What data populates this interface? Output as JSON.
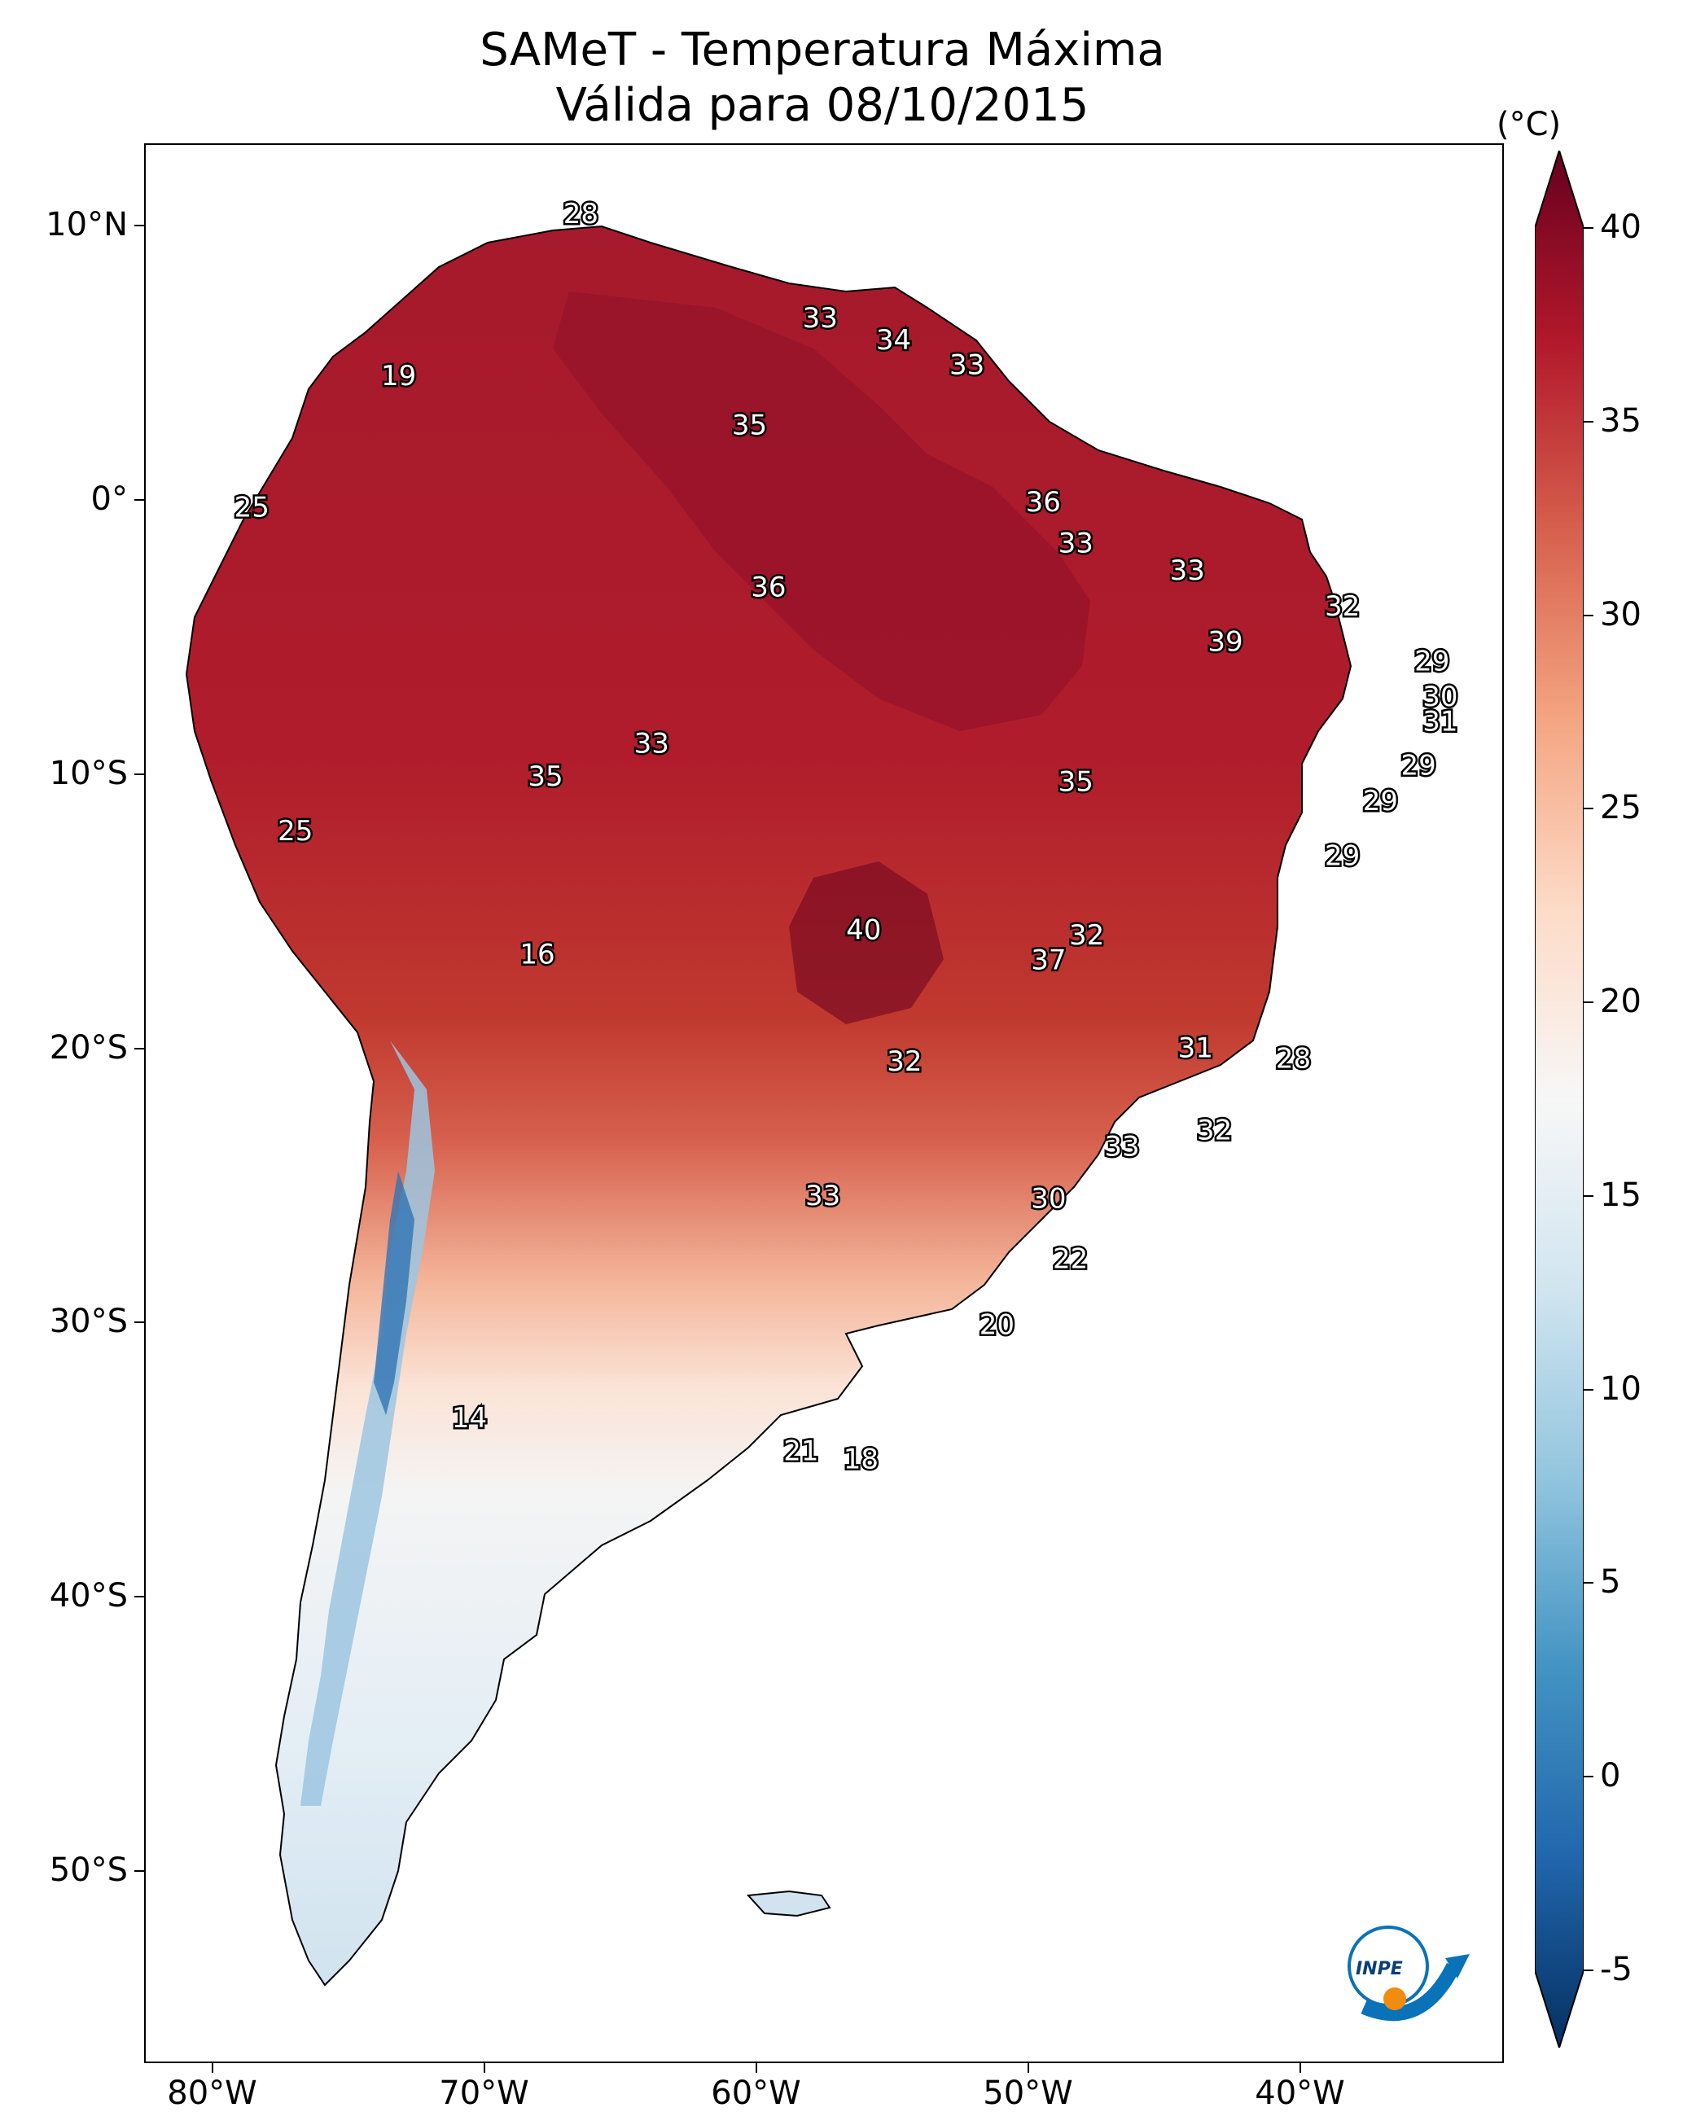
{
  "title": {
    "line1": "SAMeT - Temperatura Máxima",
    "line2": "Válida para 08/10/2015"
  },
  "map": {
    "lon_range": [
      -82.5,
      -32.5
    ],
    "lat_range": [
      -57,
      13
    ],
    "lat_ticks": [
      {
        "value": 10,
        "label": "10°N"
      },
      {
        "value": 0,
        "label": "0°"
      },
      {
        "value": -10,
        "label": "10°S"
      },
      {
        "value": -20,
        "label": "20°S"
      },
      {
        "value": -30,
        "label": "30°S"
      },
      {
        "value": -40,
        "label": "40°S"
      },
      {
        "value": -50,
        "label": "50°S"
      }
    ],
    "lon_ticks": [
      {
        "value": -80,
        "label": "80°W"
      },
      {
        "value": -70,
        "label": "70°W"
      },
      {
        "value": -60,
        "label": "60°W"
      },
      {
        "value": -50,
        "label": "50°W"
      },
      {
        "value": -40,
        "label": "40°W"
      }
    ],
    "city_values": [
      {
        "lon": -66.5,
        "lat": 10.5,
        "value": "28"
      },
      {
        "lon": -57.7,
        "lat": 6.7,
        "value": "33"
      },
      {
        "lon": -55.0,
        "lat": 5.9,
        "value": "34"
      },
      {
        "lon": -52.3,
        "lat": 5.0,
        "value": "33"
      },
      {
        "lon": -73.2,
        "lat": 4.6,
        "value": "19"
      },
      {
        "lon": -60.3,
        "lat": 2.8,
        "value": "35"
      },
      {
        "lon": -49.5,
        "lat": 0.0,
        "value": "36"
      },
      {
        "lon": -78.6,
        "lat": -0.2,
        "value": "25"
      },
      {
        "lon": -48.3,
        "lat": -1.5,
        "value": "33"
      },
      {
        "lon": -44.2,
        "lat": -2.5,
        "value": "33"
      },
      {
        "lon": -59.6,
        "lat": -3.1,
        "value": "36"
      },
      {
        "lon": -38.5,
        "lat": -3.8,
        "value": "32"
      },
      {
        "lon": -42.8,
        "lat": -5.1,
        "value": "39"
      },
      {
        "lon": -35.2,
        "lat": -5.8,
        "value": "29"
      },
      {
        "lon": -34.9,
        "lat": -7.1,
        "value": "30"
      },
      {
        "lon": -34.9,
        "lat": -8.0,
        "value": "31"
      },
      {
        "lon": -63.9,
        "lat": -8.8,
        "value": "33"
      },
      {
        "lon": -35.7,
        "lat": -9.6,
        "value": "29"
      },
      {
        "lon": -67.8,
        "lat": -10.0,
        "value": "35"
      },
      {
        "lon": -48.3,
        "lat": -10.2,
        "value": "35"
      },
      {
        "lon": -37.1,
        "lat": -10.9,
        "value": "29"
      },
      {
        "lon": -77.0,
        "lat": -12.0,
        "value": "25"
      },
      {
        "lon": -38.5,
        "lat": -12.9,
        "value": "29"
      },
      {
        "lon": -56.1,
        "lat": -15.6,
        "value": "40"
      },
      {
        "lon": -47.9,
        "lat": -15.8,
        "value": "32"
      },
      {
        "lon": -49.3,
        "lat": -16.7,
        "value": "37"
      },
      {
        "lon": -68.1,
        "lat": -16.5,
        "value": "16"
      },
      {
        "lon": -43.9,
        "lat": -19.9,
        "value": "31"
      },
      {
        "lon": -40.3,
        "lat": -20.3,
        "value": "28"
      },
      {
        "lon": -54.6,
        "lat": -20.4,
        "value": "32"
      },
      {
        "lon": -43.2,
        "lat": -22.9,
        "value": "32"
      },
      {
        "lon": -46.6,
        "lat": -23.5,
        "value": "33"
      },
      {
        "lon": -57.6,
        "lat": -25.3,
        "value": "33"
      },
      {
        "lon": -49.3,
        "lat": -25.4,
        "value": "30"
      },
      {
        "lon": -48.5,
        "lat": -27.6,
        "value": "22"
      },
      {
        "lon": -51.2,
        "lat": -30.0,
        "value": "20"
      },
      {
        "lon": -70.6,
        "lat": -33.4,
        "value": "14"
      },
      {
        "lon": -58.4,
        "lat": -34.6,
        "value": "21"
      },
      {
        "lon": -56.2,
        "lat": -34.9,
        "value": "18"
      }
    ]
  },
  "colorbar": {
    "unit": "(°C)",
    "min": -5,
    "max": 40,
    "ticks": [
      "40",
      "35",
      "30",
      "25",
      "20",
      "15",
      "10",
      "5",
      "0",
      "-5"
    ],
    "colors": [
      "#053061",
      "#2166ac",
      "#4393c3",
      "#92c5de",
      "#d1e5f0",
      "#f7f7f7",
      "#fddbc7",
      "#f4a582",
      "#d6604d",
      "#b2182b",
      "#67001f"
    ]
  },
  "logo": {
    "text": "INPE",
    "colors": [
      "#0a72b8",
      "#f28c0f"
    ]
  }
}
